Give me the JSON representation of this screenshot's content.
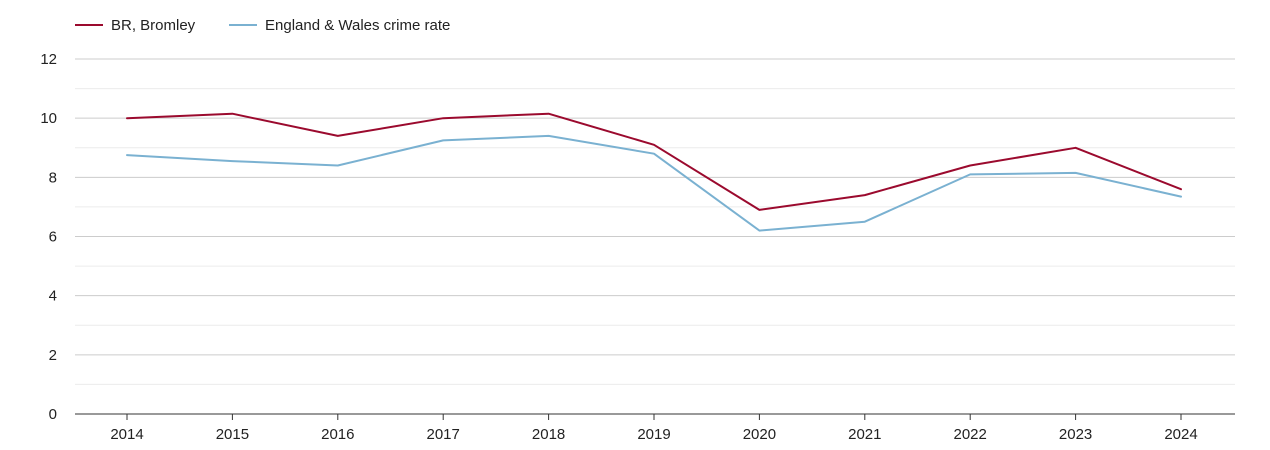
{
  "chart_data": {
    "type": "line",
    "title": "",
    "xlabel": "",
    "ylabel": "",
    "ylim": [
      0,
      12
    ],
    "yticks": [
      0,
      2,
      4,
      6,
      8,
      10,
      12
    ],
    "ytick_labels": [
      "0",
      "2",
      "4",
      "6",
      "8",
      "10",
      "12"
    ],
    "grid": true,
    "legend_position": "top-left",
    "categories": [
      "2014",
      "2015",
      "2016",
      "2017",
      "2018",
      "2019",
      "2020",
      "2021",
      "2022",
      "2023",
      "2024"
    ],
    "series": [
      {
        "name": "BR, Bromley",
        "color": "#9b0a2e",
        "values": [
          10.0,
          10.15,
          9.4,
          10.0,
          10.15,
          9.1,
          6.9,
          7.4,
          8.4,
          9.0,
          7.6
        ]
      },
      {
        "name": "England & Wales crime rate",
        "color": "#7ab1d1",
        "values": [
          8.75,
          8.55,
          8.4,
          9.25,
          9.4,
          8.8,
          6.2,
          6.5,
          8.1,
          8.15,
          7.35
        ]
      }
    ]
  },
  "colors": {
    "major_grid": "#cccccc",
    "minor_grid": "#ececec",
    "axis": "#333333",
    "text": "#222222"
  }
}
